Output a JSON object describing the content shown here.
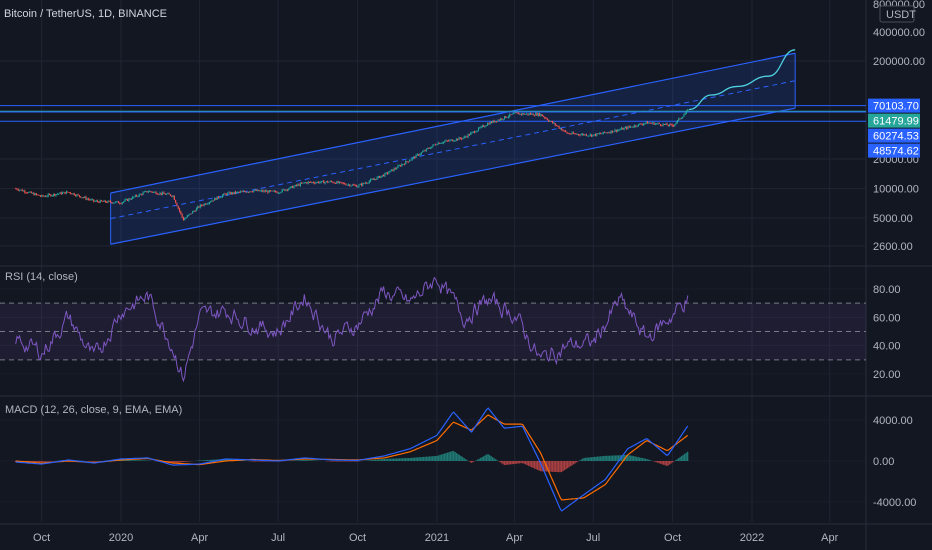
{
  "header": {
    "symbol": "Bitcoin / TetherUS, 1D, BINANCE",
    "currency": "USDT"
  },
  "colors": {
    "background": "#131722",
    "grid": "#1f2433",
    "separator": "#2a2e39",
    "channel": "#2962ff",
    "channel_fill": "rgba(41,98,255,0.15)",
    "up": "#26a69a",
    "down": "#ef5350",
    "projection": "#4dd0e1",
    "rsi_line": "#7e57c2",
    "rsi_band": "rgba(126,87,194,0.1)",
    "macd_line": "#2962ff",
    "signal_line": "#ff6d00",
    "hist_up": "#26a69a",
    "hist_down": "#ef5350"
  },
  "chart_data": [
    {
      "type": "line",
      "panel": "price",
      "scale": "log",
      "y_ticks": [
        "800000.00",
        "400000.00",
        "200000.00",
        "20000.00",
        "10000.00",
        "5000.00",
        "2600.00"
      ],
      "y_tick_values": [
        800000,
        400000,
        200000,
        20000,
        10000,
        5000,
        2600
      ],
      "price_tags": [
        {
          "label": "70103.70",
          "value": 70103.7,
          "color": "#2962ff"
        },
        {
          "label": "61479.99",
          "value": 61479.99,
          "color": "#26a69a"
        },
        {
          "label": "60274.53",
          "value": 60274.53,
          "color": "#2962ff"
        },
        {
          "label": "48574.62",
          "value": 48574.62,
          "color": "#2962ff"
        }
      ],
      "x": [
        "2019-09-01",
        "2019-10-01",
        "2019-11-01",
        "2019-12-01",
        "2020-01-01",
        "2020-02-01",
        "2020-03-01",
        "2020-03-13",
        "2020-04-01",
        "2020-05-01",
        "2020-06-01",
        "2020-07-01",
        "2020-08-01",
        "2020-09-01",
        "2020-10-01",
        "2020-11-01",
        "2020-12-01",
        "2021-01-01",
        "2021-02-01",
        "2021-03-01",
        "2021-04-01",
        "2021-05-01",
        "2021-06-01",
        "2021-07-01",
        "2021-08-01",
        "2021-09-01",
        "2021-10-01",
        "2021-10-20"
      ],
      "close": [
        10000,
        8300,
        9200,
        7400,
        7200,
        9400,
        8500,
        4800,
        6600,
        8800,
        9500,
        9200,
        11500,
        11700,
        10600,
        13800,
        19700,
        29000,
        33000,
        46000,
        58000,
        57000,
        36500,
        35000,
        40000,
        47000,
        43800,
        64000
      ],
      "projection_x": [
        "2021-10-20",
        "2021-11-15",
        "2021-12-15",
        "2022-01-20",
        "2022-02-20"
      ],
      "projection_y": [
        64000,
        90000,
        110000,
        140000,
        260000
      ],
      "channel_x": [
        "2019-12-20",
        "2022-02-20"
      ],
      "channel_upper": [
        9000,
        240000
      ],
      "channel_lower": [
        2700,
        66000
      ]
    },
    {
      "type": "line",
      "panel": "rsi",
      "title": "RSI (14, close)",
      "y_ticks": [
        "80.00",
        "60.00",
        "40.00",
        "20.00"
      ],
      "y_tick_values": [
        80,
        60,
        40,
        20
      ],
      "ylim": [
        10,
        95
      ],
      "bands": [
        70,
        50,
        30
      ],
      "x": [
        "2019-09-01",
        "2019-10-01",
        "2019-11-01",
        "2019-12-01",
        "2020-01-01",
        "2020-02-01",
        "2020-03-01",
        "2020-03-13",
        "2020-04-01",
        "2020-05-01",
        "2020-06-01",
        "2020-07-01",
        "2020-08-01",
        "2020-09-01",
        "2020-10-01",
        "2020-11-01",
        "2020-12-01",
        "2021-01-01",
        "2021-02-01",
        "2021-03-01",
        "2021-04-01",
        "2021-05-01",
        "2021-06-01",
        "2021-07-01",
        "2021-08-01",
        "2021-09-01",
        "2021-10-01",
        "2021-10-20"
      ],
      "values": [
        45,
        35,
        60,
        30,
        65,
        75,
        40,
        18,
        60,
        65,
        55,
        50,
        75,
        45,
        55,
        78,
        70,
        88,
        60,
        72,
        62,
        30,
        40,
        42,
        72,
        45,
        62,
        74
      ]
    },
    {
      "type": "line",
      "panel": "macd",
      "title": "MACD (12, 26, close, 9, EMA, EMA)",
      "y_ticks": [
        "4000.00",
        "0.00",
        "-4000.00"
      ],
      "y_tick_values": [
        4000,
        0,
        -4000
      ],
      "ylim": [
        -5200,
        5600
      ],
      "x": [
        "2019-09-01",
        "2019-10-01",
        "2019-11-01",
        "2019-12-01",
        "2020-01-01",
        "2020-02-01",
        "2020-03-01",
        "2020-04-01",
        "2020-05-01",
        "2020-06-01",
        "2020-07-01",
        "2020-08-01",
        "2020-09-01",
        "2020-10-01",
        "2020-11-01",
        "2020-12-01",
        "2021-01-01",
        "2021-01-20",
        "2021-02-10",
        "2021-03-01",
        "2021-03-20",
        "2021-04-10",
        "2021-05-01",
        "2021-05-25",
        "2021-06-20",
        "2021-07-15",
        "2021-08-10",
        "2021-09-01",
        "2021-09-25",
        "2021-10-20"
      ],
      "macd": [
        -100,
        -300,
        100,
        -200,
        200,
        300,
        -400,
        -300,
        200,
        100,
        0,
        300,
        100,
        50,
        500,
        1200,
        2500,
        4800,
        2800,
        5200,
        3200,
        3400,
        -200,
        -4900,
        -3300,
        -1800,
        1200,
        2200,
        500,
        3600
      ],
      "signal": [
        0,
        -200,
        0,
        -150,
        100,
        250,
        -200,
        -350,
        0,
        150,
        50,
        200,
        150,
        100,
        300,
        900,
        2000,
        3800,
        3000,
        4500,
        3600,
        3600,
        800,
        -3800,
        -3600,
        -2300,
        600,
        2000,
        1000,
        2600
      ],
      "x_ticks": [
        "Oct",
        "2020",
        "Apr",
        "Jul",
        "Oct",
        "2021",
        "Apr",
        "Jul",
        "Oct",
        "2022",
        "Apr"
      ],
      "x_tick_dates": [
        "2019-10-01",
        "2020-01-01",
        "2020-04-01",
        "2020-07-01",
        "2020-10-01",
        "2021-01-01",
        "2021-04-01",
        "2021-07-01",
        "2021-10-01",
        "2022-01-01",
        "2022-04-01"
      ]
    }
  ]
}
